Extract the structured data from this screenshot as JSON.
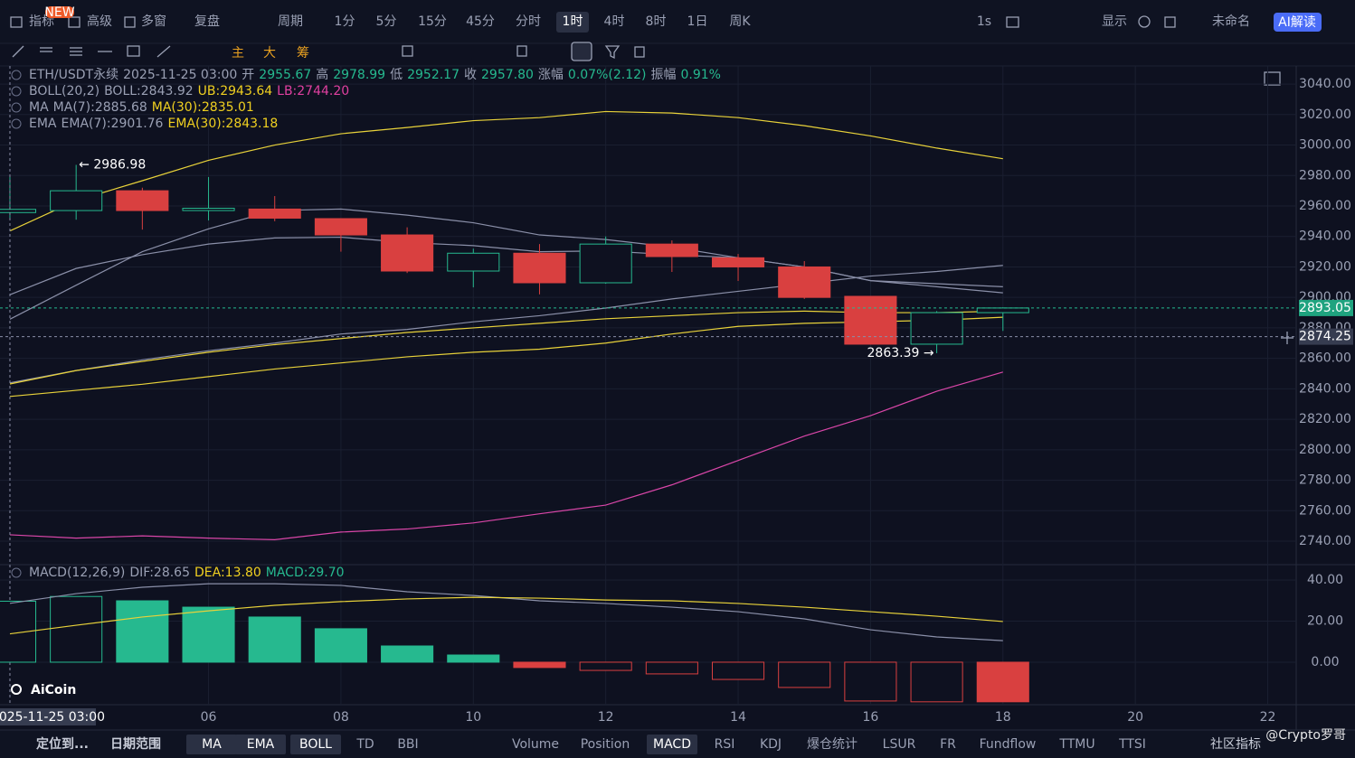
{
  "top_toolbar": {
    "badge": "NEW",
    "left": [
      "指标",
      "高级",
      "多窗",
      "复盘"
    ],
    "period": "周期",
    "intervals": [
      "1分",
      "5分",
      "15分",
      "45分",
      "分时",
      "1时",
      "4时",
      "8时",
      "1日",
      "周K"
    ],
    "selected": "1时",
    "right": [
      "1s",
      "显示",
      "未命名"
    ],
    "ai": "AI解读"
  },
  "draw_toolbar": {
    "labels": [
      "主",
      "大",
      "筹"
    ]
  },
  "legend": {
    "rows": [
      [
        {
          "text": "ETH/USDT永续",
          "color": "#9aa0b4"
        },
        {
          "text": "2025-11-25 03:00",
          "color": "#9aa0b4"
        },
        {
          "text": "开",
          "color": "#9aa0b4"
        },
        {
          "text": "2955.67",
          "color": "#26b98f"
        },
        {
          "text": "高",
          "color": "#9aa0b4"
        },
        {
          "text": "2978.99",
          "color": "#26b98f"
        },
        {
          "text": "低",
          "color": "#9aa0b4"
        },
        {
          "text": "2952.17",
          "color": "#26b98f"
        },
        {
          "text": "收",
          "color": "#9aa0b4"
        },
        {
          "text": "2957.80",
          "color": "#26b98f"
        },
        {
          "text": "涨幅",
          "color": "#9aa0b4"
        },
        {
          "text": "0.07%(2.12)",
          "color": "#26b98f"
        },
        {
          "text": "振幅",
          "color": "#9aa0b4"
        },
        {
          "text": "0.91%",
          "color": "#26b98f"
        }
      ],
      [
        {
          "text": "BOLL(20,2)",
          "color": "#9aa0b4"
        },
        {
          "text": "BOLL:2843.92",
          "color": "#9aa0b4"
        },
        {
          "text": "UB:2943.64",
          "color": "#f0d020"
        },
        {
          "text": "LB:2744.20",
          "color": "#e040a0"
        }
      ],
      [
        {
          "text": "MA",
          "color": "#9aa0b4"
        },
        {
          "text": "MA(7):2885.68",
          "color": "#9aa0b4"
        },
        {
          "text": "MA(30):2835.01",
          "color": "#f0d020"
        }
      ],
      [
        {
          "text": "EMA",
          "color": "#9aa0b4"
        },
        {
          "text": "EMA(7):2901.76",
          "color": "#9aa0b4"
        },
        {
          "text": "EMA(30):2843.18",
          "color": "#f0d020"
        }
      ]
    ],
    "macd": [
      {
        "text": "MACD(12,26,9)",
        "color": "#9aa0b4"
      },
      {
        "text": "DIF:28.65",
        "color": "#9aa0b4"
      },
      {
        "text": "DEA:13.80",
        "color": "#f0d020"
      },
      {
        "text": "MACD:29.70",
        "color": "#26b98f"
      }
    ]
  },
  "chart_data": [
    {
      "type": "candlestick",
      "x": [
        3,
        4,
        5,
        6,
        7,
        8,
        9,
        10,
        11,
        12,
        13,
        14,
        15,
        16,
        17,
        18
      ],
      "open": [
        2955.67,
        2957,
        2970,
        2957,
        2958,
        2951.7,
        2941,
        2917.3,
        2929,
        2909.6,
        2935,
        2926,
        2920,
        2900.7,
        2869.3,
        2890
      ],
      "high": [
        2978.99,
        2986.98,
        2972,
        2979,
        2966.5,
        2952,
        2946,
        2932,
        2935,
        2940,
        2937.4,
        2928.5,
        2923.8,
        2901,
        2891,
        2893.5
      ],
      "low": [
        2952.17,
        2951,
        2944.5,
        2950.5,
        2950,
        2930,
        2916,
        2906.6,
        2902,
        2909,
        2916.7,
        2910.8,
        2899,
        2869,
        2863.39,
        2878
      ],
      "close": [
        2957.8,
        2970,
        2957,
        2958.5,
        2952,
        2941,
        2917.3,
        2929,
        2909.6,
        2935,
        2926.8,
        2920,
        2900,
        2869.3,
        2890,
        2893.05
      ],
      "up_color": "#26b98f",
      "down_color": "#d94040",
      "up_hollow": true,
      "lines": [
        {
          "color": "#e8d23a",
          "values": [
            2943.64,
            2963.5,
            2976.6,
            2990,
            3000,
            3007.4,
            3011.5,
            3016,
            3018,
            3022,
            3021,
            3018,
            3012.7,
            3006,
            2998,
            2991
          ]
        },
        {
          "color": "#d946a8",
          "values": [
            2744.2,
            2742,
            2743.5,
            2742,
            2741,
            2746,
            2748,
            2752,
            2758,
            2763.7,
            2777,
            2793,
            2809,
            2822.4,
            2838.4,
            2851
          ]
        },
        {
          "color": "#8a8fa8",
          "values": [
            2843.92,
            2852,
            2859,
            2865,
            2870,
            2876,
            2879,
            2884,
            2888,
            2893,
            2899,
            2904,
            2909,
            2914,
            2917,
            2921
          ]
        },
        {
          "color": "#8a8fa8",
          "values": [
            2885.68,
            2908,
            2930,
            2945,
            2957,
            2958,
            2954,
            2949,
            2941,
            2938,
            2933,
            2926,
            2920,
            2911,
            2909,
            2907
          ]
        },
        {
          "color": "#8a8fa8",
          "values": [
            2901.76,
            2919,
            2928,
            2935,
            2939,
            2939.5,
            2936,
            2934,
            2930,
            2930.5,
            2928,
            2926,
            2920,
            2911,
            2907,
            2903
          ]
        },
        {
          "color": "#e8d23a",
          "values": [
            2835.01,
            2839,
            2843,
            2848,
            2853,
            2857,
            2861,
            2864,
            2866,
            2870,
            2876,
            2881,
            2883,
            2884,
            2885,
            2887
          ]
        },
        {
          "color": "#e8d23a",
          "values": [
            2843.18,
            2852,
            2858,
            2864,
            2869,
            2873,
            2877,
            2880,
            2883,
            2886,
            2888,
            2890,
            2891,
            2890,
            2890,
            2891
          ]
        }
      ],
      "xlim": [
        2.85,
        22.43
      ],
      "xticks": [
        {
          "value": 6,
          "label": "06"
        },
        {
          "value": 8,
          "label": "08"
        },
        {
          "value": 10,
          "label": "10"
        },
        {
          "value": 12,
          "label": "12"
        },
        {
          "value": 14,
          "label": "14"
        },
        {
          "value": 16,
          "label": "16"
        },
        {
          "value": 18,
          "label": "18"
        },
        {
          "value": 20,
          "label": "20"
        },
        {
          "value": 22,
          "label": "22"
        }
      ],
      "ylim": [
        2724.6,
        3051.9
      ],
      "yticks": [
        {
          "value": 3040,
          "label": "3040.00"
        },
        {
          "value": 3020,
          "label": "3020.00"
        },
        {
          "value": 3000,
          "label": "3000.00"
        },
        {
          "value": 2980,
          "label": "2980.00"
        },
        {
          "value": 2960,
          "label": "2960.00"
        },
        {
          "value": 2940,
          "label": "2940.00"
        },
        {
          "value": 2920,
          "label": "2920.00"
        },
        {
          "value": 2900,
          "label": "2900.00"
        },
        {
          "value": 2880,
          "label": "2880.00"
        },
        {
          "value": 2860,
          "label": "2860.00"
        },
        {
          "value": 2840,
          "label": "2840.00"
        },
        {
          "value": 2820,
          "label": "2820.00"
        },
        {
          "value": 2800,
          "label": "2800.00"
        },
        {
          "value": 2780,
          "label": "2780.00"
        },
        {
          "value": 2760,
          "label": "2760.00"
        },
        {
          "value": 2740,
          "label": "2740.00"
        }
      ],
      "grid": true,
      "last_price": 2893.05,
      "crosshair_price": 2874.25,
      "crosshair_time": "2025-11-25 03:00",
      "annotations": [
        {
          "text": "← 2986.98",
          "index": 1,
          "at": "high"
        },
        {
          "text": "2863.39 →",
          "index": 14,
          "at": "low"
        }
      ]
    },
    {
      "type": "macd",
      "x": [
        3,
        4,
        5,
        6,
        7,
        8,
        9,
        10,
        11,
        12,
        13,
        14,
        15,
        16,
        17,
        18
      ],
      "values": [
        29.7,
        32,
        29.9,
        26.8,
        22,
        16.3,
        7.9,
        3.5,
        -2.6,
        -4,
        -5.7,
        -8.4,
        -12.3,
        -18.9,
        -19.3,
        -19.3
      ],
      "up_color": "#26b98f",
      "down_color": "#d94040",
      "lines": [
        {
          "color": "#8a8fa8",
          "values": [
            28.65,
            33.4,
            36.5,
            38.2,
            38.2,
            37.4,
            34.3,
            32.5,
            29.9,
            28.6,
            26.8,
            24.6,
            21.1,
            15.8,
            12.3,
            10.5
          ]
        },
        {
          "color": "#e8d23a",
          "values": [
            13.8,
            18,
            22,
            25,
            27.7,
            29.5,
            30.8,
            31.6,
            31.2,
            30.3,
            29.9,
            28.6,
            26.8,
            24.6,
            22.4,
            19.8
          ]
        }
      ],
      "ylim": [
        -20.7,
        47.5
      ],
      "yticks": [
        {
          "value": 40,
          "label": "40.00"
        },
        {
          "value": 20,
          "label": "20.00"
        },
        {
          "value": 0,
          "label": "0.00"
        }
      ]
    }
  ],
  "bottom_bar": {
    "left": [
      "定位到...",
      "日期范围"
    ],
    "main": [
      "MA",
      "EMA",
      "BOLL",
      "TD",
      "BBI"
    ],
    "main_active": [
      "MA",
      "EMA",
      "BOLL"
    ],
    "sub": [
      "Volume",
      "Position",
      "MACD",
      "RSI",
      "KDJ",
      "爆仓统计",
      "LSUR",
      "FR",
      "Fundflow",
      "TTMU",
      "TTSI"
    ],
    "sub_active": [
      "MACD"
    ],
    "community": "社区指标"
  },
  "logo": "AiCoin",
  "watermark": "@Crypto罗哥"
}
